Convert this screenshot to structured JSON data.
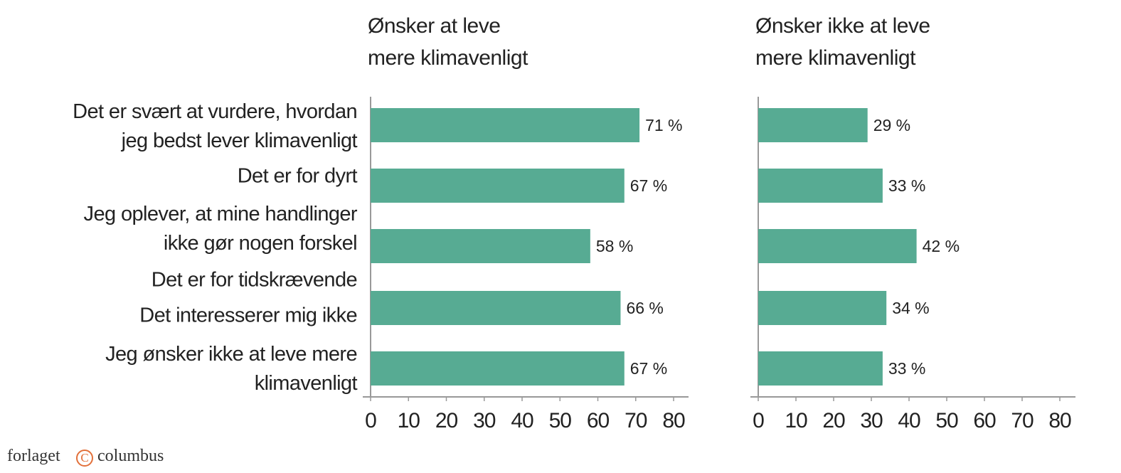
{
  "chart_data": [
    {
      "type": "hbar",
      "title": "Ønsker at leve\nmere klimavenligt",
      "categories": [
        "Det er svært at vurdere, hvordan\njeg bedst lever klimavenligt",
        "Det er for dyrt",
        "Jeg oplever, at mine handlinger\nikke gør nogen forskel",
        "Det er for tidskrævende",
        "Det interesserer mig ikke",
        "Jeg ønsker ikke at leve mere\nklimavenligt"
      ],
      "values": [
        71,
        67,
        58,
        null,
        66,
        67
      ],
      "value_labels": [
        "71  %",
        "67 %",
        "58 %",
        null,
        "66 %",
        "67 %"
      ],
      "color": "#57ab93",
      "xlim": [
        0,
        80
      ],
      "xticks": [
        0,
        10,
        20,
        30,
        40,
        50,
        60,
        70,
        80
      ],
      "grid": false
    },
    {
      "type": "hbar",
      "title": "Ønsker ikke at leve\nmere klimavenligt",
      "values": [
        29,
        33,
        42,
        null,
        34,
        33
      ],
      "value_labels": [
        "29 %",
        "33 %",
        "42 %",
        null,
        "34 %",
        "33 %"
      ],
      "color": "#57ab93",
      "xlim": [
        0,
        80
      ],
      "xticks": [
        0,
        10,
        20,
        30,
        40,
        50,
        60,
        70,
        80
      ],
      "grid": false
    }
  ],
  "footer": {
    "left": "forlaget",
    "right": "columbus"
  }
}
